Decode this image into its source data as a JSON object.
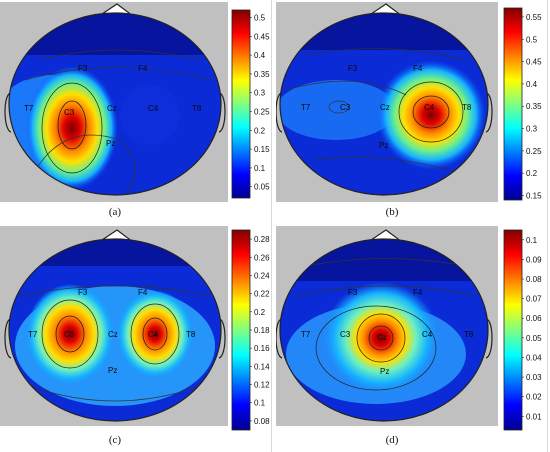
{
  "panels": [
    {
      "caption": "(a)",
      "electrodes": [
        {
          "label": "F3"
        },
        {
          "label": "F4"
        },
        {
          "label": "T7"
        },
        {
          "label": "C3"
        },
        {
          "label": "Cz"
        },
        {
          "label": "C4"
        },
        {
          "label": "T8"
        },
        {
          "label": "Pz"
        }
      ],
      "colorbar": {
        "ticks": [
          "0.5",
          "0.45",
          "0.4",
          "0.35",
          "0.3",
          "0.25",
          "0.2",
          "0.15",
          "0.1",
          "0.05"
        ],
        "min": 0.02,
        "max": 0.52
      },
      "hotspots": [
        {
          "region": "left-central",
          "peak": 0.52
        }
      ]
    },
    {
      "caption": "(b)",
      "electrodes": [
        {
          "label": "F3"
        },
        {
          "label": "F4"
        },
        {
          "label": "T7"
        },
        {
          "label": "C3"
        },
        {
          "label": "Cz"
        },
        {
          "label": "C4"
        },
        {
          "label": "T8"
        },
        {
          "label": "Pz"
        }
      ],
      "colorbar": {
        "ticks": [
          "0.55",
          "0.5",
          "0.45",
          "0.4",
          "0.35",
          "0.3",
          "0.25",
          "0.2",
          "0.15"
        ],
        "min": 0.14,
        "max": 0.57
      },
      "hotspots": [
        {
          "region": "right-central",
          "peak": 0.57
        }
      ]
    },
    {
      "caption": "(c)",
      "electrodes": [
        {
          "label": "F3"
        },
        {
          "label": "F4"
        },
        {
          "label": "T7"
        },
        {
          "label": "C3"
        },
        {
          "label": "Cz"
        },
        {
          "label": "C4"
        },
        {
          "label": "T8"
        },
        {
          "label": "Pz"
        }
      ],
      "colorbar": {
        "ticks": [
          "0.28",
          "0.26",
          "0.24",
          "0.22",
          "0.2",
          "0.18",
          "0.16",
          "0.14",
          "0.12",
          "0.1",
          "0.08"
        ],
        "min": 0.07,
        "max": 0.29
      },
      "hotspots": [
        {
          "region": "left-central",
          "peak": 0.28
        },
        {
          "region": "right-central",
          "peak": 0.27
        }
      ]
    },
    {
      "caption": "(d)",
      "electrodes": [
        {
          "label": "F3"
        },
        {
          "label": "F4"
        },
        {
          "label": "T7"
        },
        {
          "label": "C3"
        },
        {
          "label": "Cz"
        },
        {
          "label": "C4"
        },
        {
          "label": "T8"
        },
        {
          "label": "Pz"
        }
      ],
      "colorbar": {
        "ticks": [
          "0.1",
          "0.09",
          "0.08",
          "0.07",
          "0.06",
          "0.05",
          "0.04",
          "0.03",
          "0.02",
          "0.01"
        ],
        "min": 0.003,
        "max": 0.105
      },
      "hotspots": [
        {
          "region": "central",
          "peak": 0.105
        }
      ]
    }
  ]
}
